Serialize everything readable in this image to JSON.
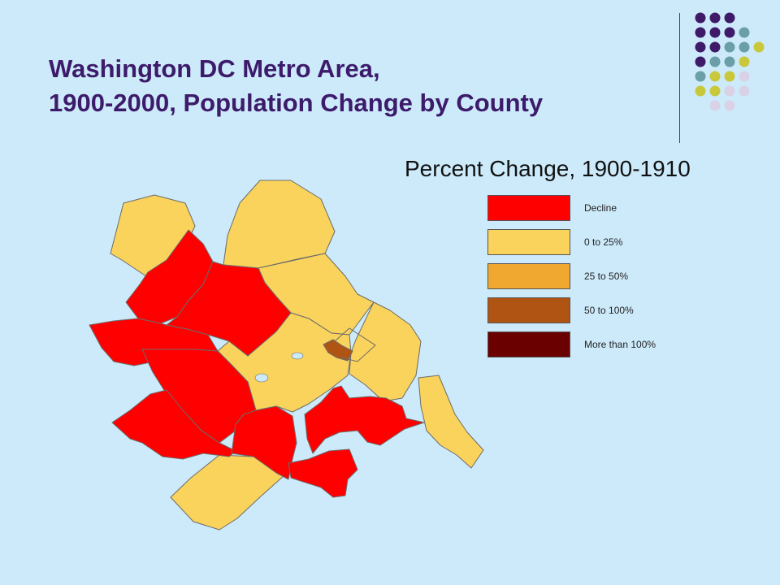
{
  "slide": {
    "title_line1": "Washington DC Metro Area,",
    "title_line2": "1900-2000, Population Change by County",
    "subtitle": "Percent Change, 1900-1910"
  },
  "legend": [
    {
      "label": "Decline",
      "color": "#ff0000"
    },
    {
      "label": "0 to 25%",
      "color": "#f9d35c"
    },
    {
      "label": "25 to 50%",
      "color": "#f0a830"
    },
    {
      "label": "50 to 100%",
      "color": "#b05414"
    },
    {
      "label": "More than 100%",
      "color": "#6a0000"
    }
  ],
  "colors": {
    "background": "#cdeafa",
    "title": "#3d1b6b",
    "water": "#cdeafa",
    "dot_purple": "#3f1a68",
    "dot_teal": "#6a9fa8",
    "dot_olive": "#c9c83a",
    "dot_lavender": "#d9d2e6"
  }
}
